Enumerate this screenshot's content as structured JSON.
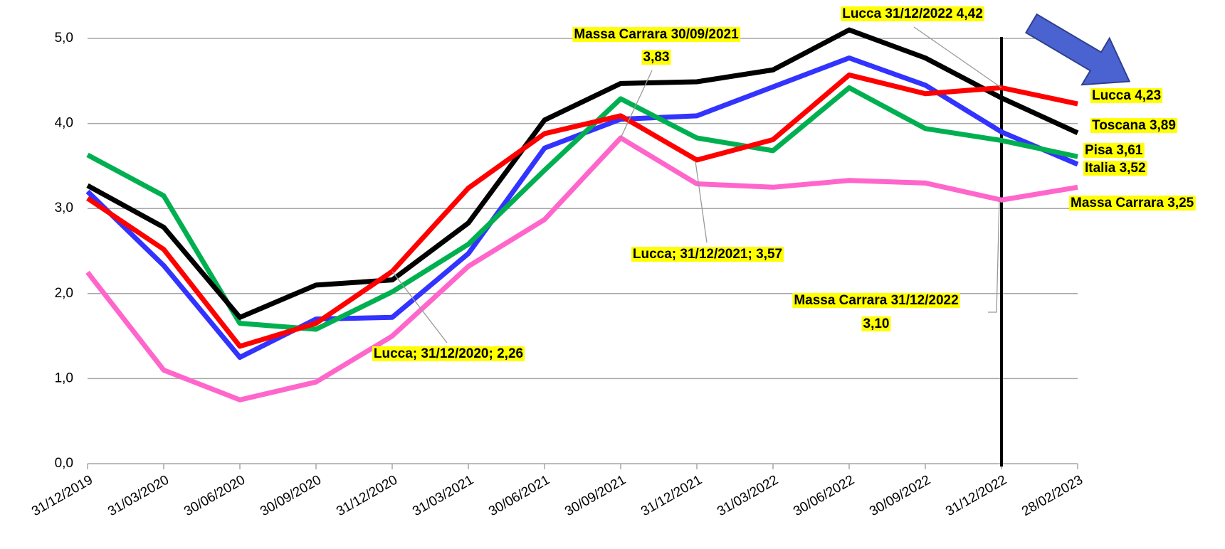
{
  "chart_data": {
    "type": "line",
    "categories": [
      "31/12/2019",
      "31/03/2020",
      "30/06/2020",
      "30/09/2020",
      "31/12/2020",
      "31/03/2021",
      "30/06/2021",
      "30/09/2021",
      "31/12/2021",
      "31/03/2022",
      "30/06/2022",
      "30/09/2022",
      "31/12/2022",
      "28/02/2023"
    ],
    "ylim": [
      0,
      5
    ],
    "yticks": [
      {
        "value": 0,
        "label": "0,0"
      },
      {
        "value": 1,
        "label": "1,0"
      },
      {
        "value": 2,
        "label": "2,0"
      },
      {
        "value": 3,
        "label": "3,0"
      },
      {
        "value": 4,
        "label": "4,0"
      },
      {
        "value": 5,
        "label": "5,0"
      }
    ],
    "grid": true,
    "series": [
      {
        "label": "Italia 3,52",
        "color": "#3333ff",
        "values": [
          3.2,
          2.33,
          1.25,
          1.7,
          1.72,
          2.47,
          3.71,
          4.05,
          4.09,
          4.43,
          4.77,
          4.45,
          3.9,
          3.52
        ]
      },
      {
        "label": "Massa Carrara 3,25",
        "color": "#ff66cc",
        "values": [
          2.25,
          1.1,
          0.75,
          0.96,
          1.5,
          2.32,
          2.87,
          3.83,
          3.29,
          3.25,
          3.33,
          3.3,
          3.1,
          3.25
        ]
      },
      {
        "label": "Pisa 3,61",
        "color": "#00b050",
        "values": [
          3.63,
          3.15,
          1.65,
          1.58,
          2.02,
          2.58,
          3.45,
          4.29,
          3.83,
          3.68,
          4.42,
          3.94,
          3.8,
          3.61
        ]
      },
      {
        "label": "Toscana 3,89",
        "color": "#000000",
        "values": [
          3.27,
          2.78,
          1.72,
          2.1,
          2.16,
          2.83,
          4.04,
          4.47,
          4.49,
          4.63,
          5.1,
          4.77,
          4.3,
          3.89
        ]
      },
      {
        "label": "Lucca 4,23",
        "color": "#ff0000",
        "values": [
          3.12,
          2.52,
          1.38,
          1.65,
          2.26,
          3.24,
          3.88,
          4.09,
          3.57,
          3.81,
          4.57,
          4.35,
          4.42,
          4.23
        ]
      }
    ],
    "annotations": [
      {
        "lines": [
          "Massa Carrara 30/09/2021",
          "3,83"
        ]
      },
      {
        "lines": [
          "Lucca 31/12/2022 4,42"
        ]
      },
      {
        "lines": [
          "Lucca; 31/12/2021; 3,57"
        ]
      },
      {
        "lines": [
          "Lucca; 31/12/2020; 2,26"
        ]
      },
      {
        "lines": [
          "Massa Carrara 31/12/2022",
          "3,10"
        ]
      }
    ]
  }
}
